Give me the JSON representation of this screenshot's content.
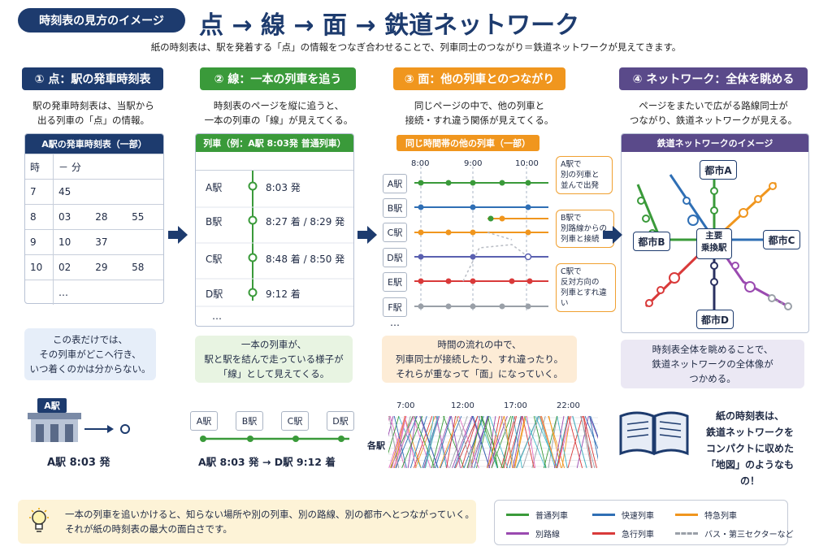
{
  "header": {
    "tagline": "時刻表の見方のイメージ",
    "title": "点 → 線 → 面 → 鉄道ネットワーク",
    "subtitle": "紙の時刻表は、駅を発着する「点」の情報をつなぎ合わせることで、列車同士のつながり＝鉄道ネットワークが見えてきます。"
  },
  "colors": {
    "navy": "#1d3b6e",
    "green": "#3a9a3a",
    "orange": "#f0961e",
    "purple": "#5a4a8a",
    "blue": "#2f6fb5",
    "red": "#d93a3a",
    "violet": "#9a4ab0",
    "gray": "#9aa0a8"
  },
  "step1": {
    "heading": "① 点：駅の発車時刻表",
    "desc": [
      "駅の発車時刻表は、当駅から",
      "出る列車の「点」の情報。"
    ],
    "caption": "A駅の発車時刻表（一部）",
    "col_hour": "時",
    "col_min": "－ 分",
    "rows": [
      {
        "h": "7",
        "m": [
          "45",
          "",
          ""
        ]
      },
      {
        "h": "8",
        "m": [
          "03",
          "28",
          "55"
        ]
      },
      {
        "h": "9",
        "m": [
          "10",
          "37",
          ""
        ]
      },
      {
        "h": "10",
        "m": [
          "02",
          "29",
          "58"
        ]
      }
    ],
    "ellipsis": "…",
    "note": [
      "この表だけでは、",
      "その列車がどこへ行き、",
      "いつ着くのかは分からない。"
    ],
    "station_label": "A駅",
    "bottom_label": "A駅 8:03 発"
  },
  "step2": {
    "heading": "② 線：一本の列車を追う",
    "desc": [
      "時刻表のページを縦に追うと、",
      "一本の列車の「線」が見えてくる。"
    ],
    "caption": "列車（例：A駅 8:03発 普通列車）",
    "stops": [
      {
        "station": "A駅",
        "time": "8:03 発"
      },
      {
        "station": "B駅",
        "time": "8:27 着 / 8:29 発"
      },
      {
        "station": "C駅",
        "time": "8:48 着 / 8:50 発"
      },
      {
        "station": "D駅",
        "time": "9:12 着"
      }
    ],
    "ellipsis": "…",
    "note": [
      "一本の列車が、",
      "駅と駅を結んで走っている様子が",
      "「線」として見えてくる。"
    ],
    "line_stations": [
      "A駅",
      "B駅",
      "C駅",
      "D駅"
    ],
    "bottom_from": "A駅 8:03 発",
    "bottom_arrow": "→",
    "bottom_to": "D駅 9:12 着"
  },
  "step3": {
    "heading": "③ 面：他の列車とのつながり",
    "desc": [
      "同じページの中で、他の列車と",
      "接続・すれ違う関係が見えてくる。"
    ],
    "caption": "同じ時間帯の他の列車（一部）",
    "times": [
      "8:00",
      "9:00",
      "10:00"
    ],
    "stations": [
      "A駅",
      "B駅",
      "C駅",
      "D駅",
      "E駅",
      "F駅"
    ],
    "ellipsis": "…",
    "callouts": [
      [
        "A駅で",
        "別の列車と",
        "並んで出発"
      ],
      [
        "B駅で",
        "別路線からの",
        "列車と接続"
      ],
      [
        "C駅で",
        "反対方向の",
        "列車とすれ違い"
      ]
    ],
    "note": [
      "時間の流れの中で、",
      "列車同士が接続したり、すれ違ったり。",
      "それらが重なって「面」になっていく。"
    ],
    "dense_times": [
      "7:00",
      "12:00",
      "17:00",
      "22:00"
    ],
    "dense_label": "各駅"
  },
  "step4": {
    "heading": "④ ネットワーク：全体を眺める",
    "desc": [
      "ページをまたいで広がる路線同士が",
      "つながり、鉄道ネットワークが見える。"
    ],
    "caption": "鉄道ネットワークのイメージ",
    "cities": {
      "a": "都市A",
      "b": "都市B",
      "c": "都市C",
      "d": "都市D"
    },
    "hub": [
      "主要",
      "乗換駅"
    ],
    "note": [
      "時刻表全体を眺めることで、",
      "鉄道ネットワークの全体像が",
      "つかめる。"
    ],
    "book_text": [
      "紙の時刻表は、",
      "鉄道ネットワークを",
      "コンパクトに収めた",
      "「地図」のようなもの！"
    ]
  },
  "tip": {
    "icon": "lightbulb-icon",
    "lines": [
      "一本の列車を追いかけると、知らない場所や別の列車、別の路線、別の都市へとつながっていく。",
      "それが紙の時刻表の最大の面白さです。"
    ]
  },
  "legend": [
    {
      "label": "普通列車",
      "color": "#3a9a3a",
      "dashed": false
    },
    {
      "label": "快速列車",
      "color": "#2f6fb5",
      "dashed": false
    },
    {
      "label": "特急列車",
      "color": "#f0961e",
      "dashed": false
    },
    {
      "label": "別路線",
      "color": "#9a4ab0",
      "dashed": false
    },
    {
      "label": "急行列車",
      "color": "#d93a3a",
      "dashed": false
    },
    {
      "label": "バス・第三セクターなど",
      "color": "#9aa0a8",
      "dashed": true
    }
  ]
}
